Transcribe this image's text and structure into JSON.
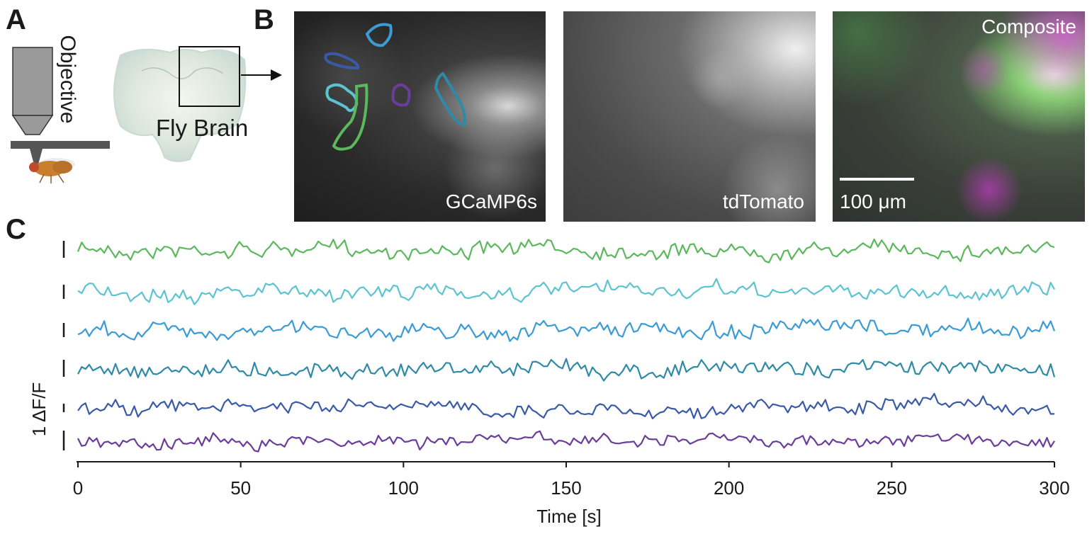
{
  "panels": {
    "a_letter": "A",
    "b_letter": "B",
    "c_letter": "C"
  },
  "panel_a": {
    "objective_label": "Objective",
    "brain_label": "Fly Brain"
  },
  "panel_b": {
    "images": [
      {
        "label": "GCaMP6s"
      },
      {
        "label": "tdTomato"
      },
      {
        "label": "Composite"
      }
    ],
    "scale_bar_label": "100 μm"
  },
  "colors": {
    "roi_green": "#5cb85c",
    "roi_cyan": "#5bc4d0",
    "roi_blue": "#3b9bd4",
    "roi_teal": "#2f8aa8",
    "roi_navy": "#3a5aa8",
    "roi_purple": "#6a3d9a"
  },
  "chart_data": {
    "type": "line",
    "xlabel": "Time [s]",
    "scale_label": "1 ΔF/F",
    "xlim": [
      0,
      300
    ],
    "xticks": [
      0,
      50,
      100,
      150,
      200,
      250,
      300
    ],
    "series": [
      {
        "color": "#5cb85c"
      },
      {
        "color": "#5bc4d0"
      },
      {
        "color": "#3b9bd4"
      },
      {
        "color": "#2f8aa8"
      },
      {
        "color": "#3a5aa8"
      },
      {
        "color": "#6a3d9a"
      }
    ]
  }
}
